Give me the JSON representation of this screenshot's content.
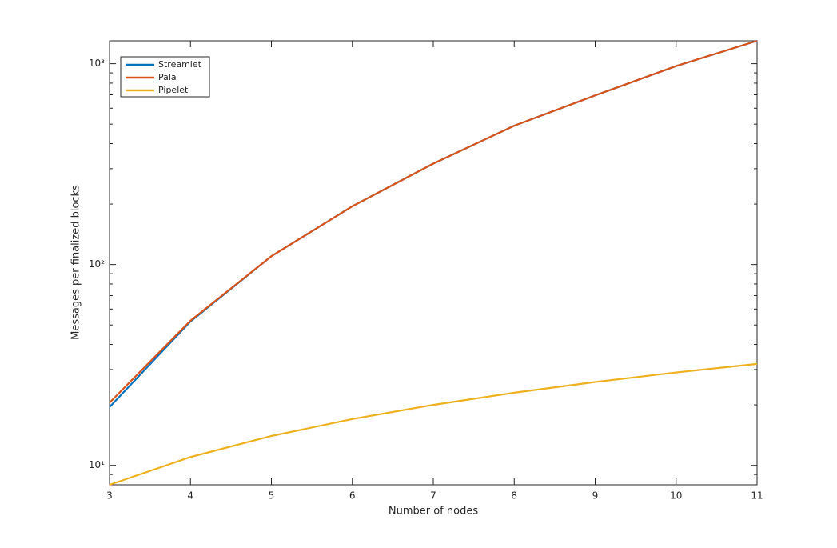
{
  "chart_data": {
    "type": "line",
    "xlabel": "Number of nodes",
    "ylabel": "Messages per finalized blocks",
    "x": [
      3,
      4,
      5,
      6,
      7,
      8,
      9,
      10,
      11
    ],
    "series": [
      {
        "name": "Streamlet",
        "color": "#0072BD",
        "values": [
          19.5,
          52,
          110,
          195,
          318,
          491,
          695,
          973,
          1300
        ]
      },
      {
        "name": "Pala",
        "color": "#D95319",
        "values": [
          20.5,
          52.5,
          110,
          195,
          318,
          491,
          695,
          973,
          1300
        ]
      },
      {
        "name": "Pipelet",
        "color": "#EDB120",
        "values": [
          8,
          11,
          14,
          17,
          20,
          23,
          26,
          29,
          32
        ]
      }
    ],
    "xlim": [
      3,
      11
    ],
    "xticks": [
      3,
      4,
      5,
      6,
      7,
      8,
      9,
      10,
      11
    ],
    "ylim": [
      8,
      1300
    ],
    "yticks": [
      {
        "value": 10,
        "label": "10¹"
      },
      {
        "value": 100,
        "label": "10²"
      },
      {
        "value": 1000,
        "label": "10³"
      }
    ],
    "yminorticks": [
      8,
      9,
      20,
      30,
      40,
      50,
      60,
      70,
      80,
      90,
      200,
      300,
      400,
      500,
      600,
      700,
      800,
      900
    ],
    "log_y": true,
    "grid": false,
    "legend": "upper left"
  }
}
